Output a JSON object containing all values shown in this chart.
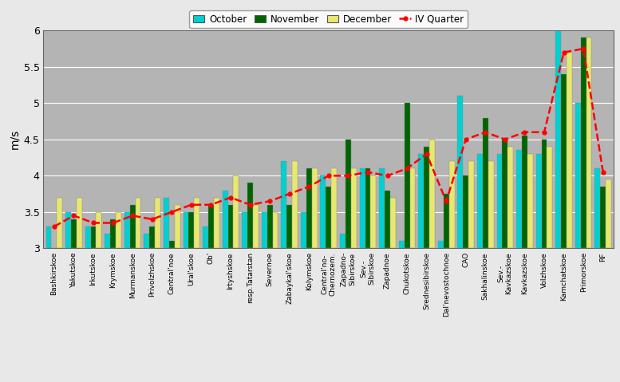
{
  "categories": [
    "Bashkirskoe",
    "Yakutskoe",
    "Irkutskoe",
    "Krymskoe",
    "Murmanskoe",
    "Privolzhskoe",
    "Central'noe",
    "Ural'skoe",
    "Ob'",
    "Irtyshskoe",
    "resp.Tatarstan",
    "Severnoe",
    "Zabaykal'skoe",
    "Kolymskoe",
    "Central'no-\nChernozem.",
    "Zapadno-\nSibirskoe",
    "Sev.-\nSibirskoe",
    "Zapadnoe",
    "Chukotskoe",
    "Srednesibirskoe",
    "Dal'nevostochnoe",
    "CAO",
    "Sakhalinskoe",
    "Sev.-\nKavkazskoe",
    "Kavkazskoe",
    "Volzhskoe",
    "Kamchatskoe",
    "Primorskoe",
    "RF"
  ],
  "october": [
    3.3,
    3.5,
    3.3,
    3.2,
    3.5,
    3.2,
    3.7,
    3.5,
    3.3,
    3.8,
    3.5,
    3.5,
    4.2,
    3.5,
    4.0,
    3.2,
    4.1,
    4.1,
    3.1,
    4.3,
    3.1,
    5.1,
    4.3,
    4.3,
    4.35,
    4.3,
    6.0,
    5.0,
    4.1
  ],
  "november": [
    3.0,
    3.4,
    3.3,
    3.4,
    3.6,
    3.3,
    3.1,
    3.5,
    3.6,
    3.6,
    3.9,
    3.6,
    3.6,
    4.1,
    3.85,
    4.5,
    4.1,
    3.8,
    5.0,
    4.4,
    3.75,
    4.0,
    4.8,
    4.5,
    4.55,
    4.5,
    5.4,
    5.9,
    3.85
  ],
  "december": [
    3.7,
    3.7,
    3.5,
    3.5,
    3.7,
    3.7,
    3.6,
    3.7,
    3.7,
    4.0,
    3.6,
    3.5,
    4.2,
    4.1,
    4.1,
    4.1,
    4.0,
    3.7,
    4.1,
    4.5,
    4.2,
    4.2,
    4.2,
    4.4,
    4.3,
    4.4,
    5.7,
    5.9,
    3.95
  ],
  "iv_quarter": [
    3.3,
    3.45,
    3.35,
    3.35,
    3.45,
    3.4,
    3.5,
    3.6,
    3.6,
    3.7,
    3.6,
    3.65,
    3.75,
    3.85,
    4.0,
    4.0,
    4.05,
    4.0,
    4.1,
    4.3,
    3.65,
    4.5,
    4.6,
    4.5,
    4.6,
    4.6,
    5.7,
    5.75,
    4.05
  ],
  "bar_color_oct": "#00d0d0",
  "bar_color_nov": "#006400",
  "bar_color_dec": "#e8e870",
  "line_color_iv": "#ff0000",
  "plot_bg_color": "#b4b4b4",
  "fig_bg_color": "#e8e8e8",
  "ylabel": "m/s",
  "ylim_min": 3.0,
  "ylim_max": 6.0,
  "yticks": [
    3.0,
    3.5,
    4.0,
    4.5,
    5.0,
    5.5,
    6.0
  ],
  "legend_labels": [
    "October",
    "November",
    "December",
    "IV Quarter"
  ]
}
